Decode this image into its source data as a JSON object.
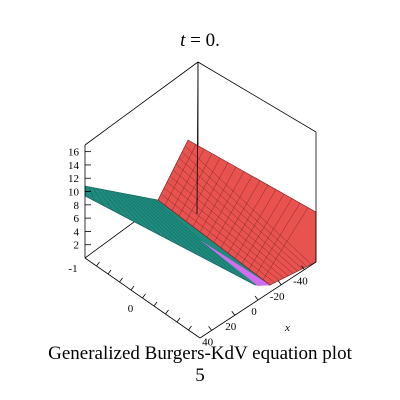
{
  "title": {
    "variable": "t",
    "rest": " = 0."
  },
  "caption": {
    "line1": "Generalized  Burgers-KdV equation plot",
    "line2": "5"
  },
  "chart_data": {
    "type": "surface",
    "title": "t = 0.",
    "caption": "Generalized  Burgers-KdV equation plot 5",
    "axes": {
      "z": {
        "ticks": [
          "2",
          "4",
          "6",
          "8",
          "10",
          "12",
          "14",
          "16"
        ],
        "range": [
          0,
          17
        ]
      },
      "x": {
        "label": "x",
        "ticks": [
          "40",
          "20",
          "0",
          "-20",
          "-40"
        ],
        "range": [
          -50,
          50
        ]
      },
      "y": {
        "ticks": [
          "-1",
          "0"
        ],
        "range": [
          -1,
          1
        ]
      }
    },
    "surface": {
      "description": "piecewise-linear wedge, low flat teal sheet meeting a steep red sheet along a fold",
      "colors": {
        "low_sheet": "#1f8a7e",
        "high_sheet": "#e8534f",
        "fold_band": "#f2e03a",
        "edge_band": "#d46cf0",
        "mesh": "#6e1d1d"
      }
    },
    "box": true,
    "grid": false
  }
}
